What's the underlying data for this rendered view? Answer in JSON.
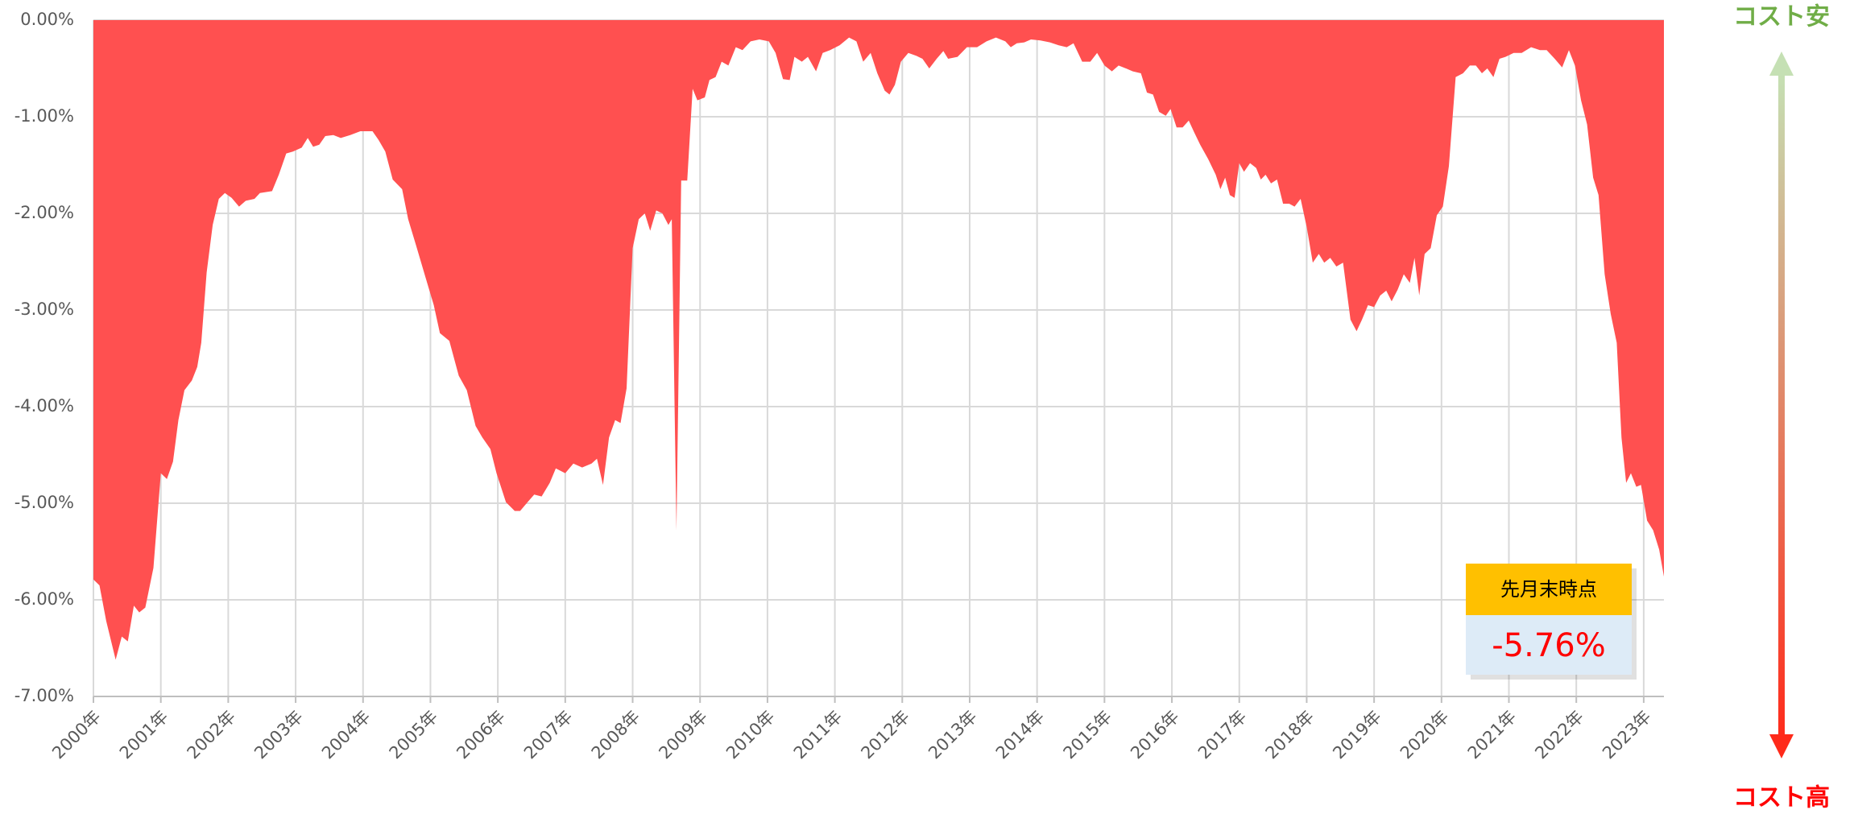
{
  "chart_data": {
    "type": "area",
    "x": [
      2000.0,
      2000.09,
      2000.19,
      2000.33,
      2000.42,
      2000.51,
      2000.6,
      2000.68,
      2000.77,
      2000.89,
      2001.0,
      2001.09,
      2001.18,
      2001.26,
      2001.35,
      2001.46,
      2001.54,
      2001.6,
      2001.68,
      2001.77,
      2001.86,
      2001.95,
      2002.05,
      2002.16,
      2002.26,
      2002.39,
      2002.47,
      2002.65,
      2002.75,
      2002.86,
      2002.96,
      2003.09,
      2003.18,
      2003.26,
      2003.35,
      2003.44,
      2003.56,
      2003.67,
      2003.81,
      2003.96,
      2004.14,
      2004.23,
      2004.33,
      2004.44,
      2004.58,
      2004.67,
      2004.79,
      2004.93,
      2005.05,
      2005.14,
      2005.28,
      2005.42,
      2005.54,
      2005.67,
      2005.77,
      2005.89,
      2005.98,
      2006.12,
      2006.25,
      2006.33,
      2006.44,
      2006.54,
      2006.65,
      2006.77,
      2006.86,
      2007.0,
      2007.12,
      2007.25,
      2007.39,
      2007.47,
      2007.56,
      2007.65,
      2007.74,
      2007.82,
      2007.91,
      2008.0,
      2008.09,
      2008.18,
      2008.26,
      2008.35,
      2008.44,
      2008.53,
      2008.58,
      2008.65,
      2008.72,
      2008.81,
      2008.89,
      2008.96,
      2009.07,
      2009.14,
      2009.23,
      2009.32,
      2009.42,
      2009.53,
      2009.63,
      2009.75,
      2009.88,
      2010.02,
      2010.12,
      2010.23,
      2010.33,
      2010.4,
      2010.51,
      2010.6,
      2010.72,
      2010.82,
      2010.93,
      2011.07,
      2011.21,
      2011.32,
      2011.42,
      2011.53,
      2011.63,
      2011.74,
      2011.81,
      2011.89,
      2011.98,
      2012.09,
      2012.21,
      2012.3,
      2012.4,
      2012.51,
      2012.61,
      2012.68,
      2012.82,
      2012.96,
      2013.11,
      2013.25,
      2013.39,
      2013.53,
      2013.61,
      2013.7,
      2013.81,
      2013.91,
      2014.05,
      2014.19,
      2014.32,
      2014.44,
      2014.54,
      2014.67,
      2014.79,
      2014.89,
      2015.0,
      2015.11,
      2015.21,
      2015.32,
      2015.42,
      2015.54,
      2015.63,
      2015.72,
      2015.81,
      2015.91,
      2015.98,
      2016.07,
      2016.16,
      2016.25,
      2016.33,
      2016.42,
      2016.54,
      2016.65,
      2016.72,
      2016.79,
      2016.86,
      2016.93,
      2017.0,
      2017.07,
      2017.16,
      2017.25,
      2017.32,
      2017.39,
      2017.47,
      2017.56,
      2017.65,
      2017.74,
      2017.82,
      2017.91,
      2018.0,
      2018.09,
      2018.18,
      2018.26,
      2018.35,
      2018.44,
      2018.54,
      2018.65,
      2018.74,
      2018.82,
      2018.91,
      2019.0,
      2019.09,
      2019.18,
      2019.26,
      2019.35,
      2019.44,
      2019.53,
      2019.6,
      2019.67,
      2019.75,
      2019.84,
      2019.93,
      2020.02,
      2020.11,
      2020.21,
      2020.32,
      2020.42,
      2020.51,
      2020.6,
      2020.68,
      2020.77,
      2020.86,
      2020.95,
      2021.07,
      2021.19,
      2021.33,
      2021.46,
      2021.56,
      2021.68,
      2021.79,
      2021.89,
      2021.98,
      2022.07,
      2022.16,
      2022.25,
      2022.33,
      2022.42,
      2022.51,
      2022.6,
      2022.67,
      2022.74,
      2022.81,
      2022.89,
      2022.96,
      2023.05,
      2023.14,
      2023.23,
      2023.3
    ],
    "series": [
      {
        "color": "#ff5050",
        "values": [
          -5.79,
          -5.85,
          -6.22,
          -6.62,
          -6.38,
          -6.43,
          -6.06,
          -6.13,
          -6.08,
          -5.67,
          -4.69,
          -4.75,
          -4.57,
          -4.14,
          -3.83,
          -3.73,
          -3.59,
          -3.34,
          -2.61,
          -2.12,
          -1.85,
          -1.79,
          -1.84,
          -1.93,
          -1.87,
          -1.85,
          -1.79,
          -1.77,
          -1.6,
          -1.38,
          -1.36,
          -1.32,
          -1.22,
          -1.31,
          -1.29,
          -1.2,
          -1.19,
          -1.22,
          -1.19,
          -1.15,
          -1.15,
          -1.24,
          -1.36,
          -1.65,
          -1.75,
          -2.06,
          -2.34,
          -2.67,
          -2.95,
          -3.24,
          -3.32,
          -3.68,
          -3.83,
          -4.2,
          -4.32,
          -4.44,
          -4.69,
          -4.99,
          -5.08,
          -5.08,
          -4.99,
          -4.91,
          -4.93,
          -4.79,
          -4.64,
          -4.69,
          -4.59,
          -4.63,
          -4.59,
          -4.54,
          -4.81,
          -4.32,
          -4.14,
          -4.17,
          -3.81,
          -2.36,
          -2.06,
          -2.0,
          -2.18,
          -1.97,
          -2.0,
          -2.12,
          -2.06,
          -5.28,
          -1.66,
          -1.66,
          -0.71,
          -0.83,
          -0.8,
          -0.62,
          -0.59,
          -0.43,
          -0.47,
          -0.28,
          -0.31,
          -0.22,
          -0.2,
          -0.22,
          -0.34,
          -0.61,
          -0.62,
          -0.38,
          -0.43,
          -0.38,
          -0.53,
          -0.34,
          -0.31,
          -0.26,
          -0.18,
          -0.22,
          -0.43,
          -0.34,
          -0.55,
          -0.73,
          -0.77,
          -0.67,
          -0.43,
          -0.34,
          -0.37,
          -0.4,
          -0.5,
          -0.4,
          -0.32,
          -0.4,
          -0.38,
          -0.28,
          -0.28,
          -0.22,
          -0.18,
          -0.22,
          -0.28,
          -0.24,
          -0.23,
          -0.2,
          -0.21,
          -0.23,
          -0.26,
          -0.28,
          -0.24,
          -0.43,
          -0.43,
          -0.34,
          -0.47,
          -0.53,
          -0.47,
          -0.5,
          -0.53,
          -0.55,
          -0.75,
          -0.77,
          -0.95,
          -0.99,
          -0.92,
          -1.11,
          -1.11,
          -1.04,
          -1.16,
          -1.29,
          -1.44,
          -1.6,
          -1.75,
          -1.63,
          -1.81,
          -1.84,
          -1.48,
          -1.57,
          -1.48,
          -1.53,
          -1.65,
          -1.6,
          -1.69,
          -1.65,
          -1.9,
          -1.9,
          -1.93,
          -1.85,
          -2.14,
          -2.51,
          -2.42,
          -2.51,
          -2.46,
          -2.55,
          -2.51,
          -3.1,
          -3.22,
          -3.1,
          -2.95,
          -2.97,
          -2.85,
          -2.8,
          -2.91,
          -2.79,
          -2.63,
          -2.72,
          -2.46,
          -2.85,
          -2.42,
          -2.36,
          -2.02,
          -1.93,
          -1.51,
          -0.59,
          -0.55,
          -0.47,
          -0.47,
          -0.55,
          -0.5,
          -0.59,
          -0.4,
          -0.38,
          -0.34,
          -0.34,
          -0.28,
          -0.31,
          -0.31,
          -0.4,
          -0.49,
          -0.31,
          -0.47,
          -0.83,
          -1.08,
          -1.63,
          -1.81,
          -2.63,
          -3.04,
          -3.34,
          -4.32,
          -4.79,
          -4.69,
          -4.83,
          -4.81,
          -5.18,
          -5.28,
          -5.48,
          -5.76
        ]
      }
    ],
    "xlim": [
      2000,
      2023.3
    ],
    "xticks": [
      {
        "value": 2000,
        "label": "2000年"
      },
      {
        "value": 2001,
        "label": "2001年"
      },
      {
        "value": 2002,
        "label": "2002年"
      },
      {
        "value": 2003,
        "label": "2003年"
      },
      {
        "value": 2004,
        "label": "2004年"
      },
      {
        "value": 2005,
        "label": "2005年"
      },
      {
        "value": 2006,
        "label": "2006年"
      },
      {
        "value": 2007,
        "label": "2007年"
      },
      {
        "value": 2008,
        "label": "2008年"
      },
      {
        "value": 2009,
        "label": "2009年"
      },
      {
        "value": 2010,
        "label": "2010年"
      },
      {
        "value": 2011,
        "label": "2011年"
      },
      {
        "value": 2012,
        "label": "2012年"
      },
      {
        "value": 2013,
        "label": "2013年"
      },
      {
        "value": 2014,
        "label": "2014年"
      },
      {
        "value": 2015,
        "label": "2015年"
      },
      {
        "value": 2016,
        "label": "2016年"
      },
      {
        "value": 2017,
        "label": "2017年"
      },
      {
        "value": 2018,
        "label": "2018年"
      },
      {
        "value": 2019,
        "label": "2019年"
      },
      {
        "value": 2020,
        "label": "2020年"
      },
      {
        "value": 2021,
        "label": "2021年"
      },
      {
        "value": 2022,
        "label": "2022年"
      },
      {
        "value": 2023,
        "label": "2023年"
      }
    ],
    "ylim": [
      -7,
      0
    ],
    "yticks": [
      {
        "value": 0,
        "label": "0.00%"
      },
      {
        "value": -1,
        "label": "-1.00%"
      },
      {
        "value": -2,
        "label": "-2.00%"
      },
      {
        "value": -3,
        "label": "-3.00%"
      },
      {
        "value": -4,
        "label": "-4.00%"
      },
      {
        "value": -5,
        "label": "-5.00%"
      },
      {
        "value": -6,
        "label": "-6.00%"
      },
      {
        "value": -7,
        "label": "-7.00%"
      }
    ],
    "grid": true,
    "callout": {
      "title": "先月末時点",
      "text": "-5.76%"
    },
    "scale_note": {
      "top": "コスト安",
      "bottom": "コスト高"
    }
  }
}
